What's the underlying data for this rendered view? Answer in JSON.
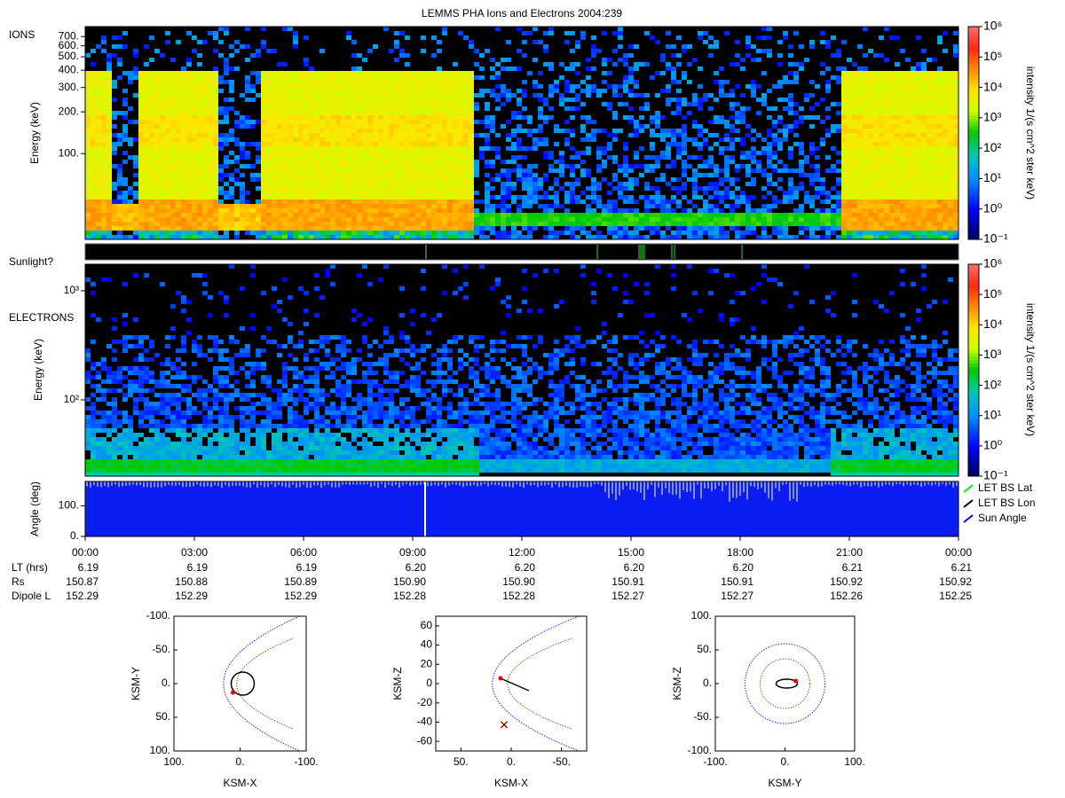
{
  "title": "LEMMS PHA Ions and Electrons  2004:239",
  "ions": {
    "label": "IONS",
    "ylabel": "Energy (keV)",
    "yscale": "log",
    "ylim": [
      24,
      826
    ],
    "yticks": [
      {
        "value": 100,
        "label": "100."
      },
      {
        "value": 200,
        "label": "200."
      },
      {
        "value": 300,
        "label": "300."
      },
      {
        "value": 400,
        "label": "400."
      },
      {
        "value": 500,
        "label": "500."
      },
      {
        "value": 600,
        "label": "600."
      },
      {
        "value": 700,
        "label": "700."
      }
    ]
  },
  "sunlight": {
    "label": "Sunlight?"
  },
  "electrons": {
    "label": "ELECTRONS",
    "ylabel": "Energy (keV)",
    "yscale": "log",
    "ylim": [
      20,
      1750
    ],
    "yticks": [
      {
        "value": 100,
        "label": "10²"
      },
      {
        "value": 1000,
        "label": "10³"
      }
    ]
  },
  "colorbar": {
    "label": "intensity 1/(s cm^2 ster keV)",
    "scale": "log",
    "lim": [
      0.1,
      1000000
    ],
    "ticks": [
      {
        "value": 0.1,
        "label": "10⁻¹"
      },
      {
        "value": 1,
        "label": "10⁰"
      },
      {
        "value": 10,
        "label": "10¹"
      },
      {
        "value": 100,
        "label": "10²"
      },
      {
        "value": 1000,
        "label": "10³"
      },
      {
        "value": 10000,
        "label": "10⁴"
      },
      {
        "value": 100000,
        "label": "10⁵"
      },
      {
        "value": 1000000,
        "label": "10⁶"
      }
    ]
  },
  "angle": {
    "ylabel": "Angle (deg)",
    "ylim": [
      0,
      180
    ],
    "yticks": [
      {
        "value": 0,
        "label": "0."
      },
      {
        "value": 100,
        "label": "100."
      }
    ],
    "legend": [
      {
        "name": "LET BS Lat",
        "color": "#00ee00"
      },
      {
        "name": "LET BS Lon",
        "color": "#000000"
      },
      {
        "name": "Sun Angle",
        "color": "#0000ff"
      }
    ]
  },
  "time_axis": {
    "ticks": [
      "00:00",
      "03:00",
      "06:00",
      "09:00",
      "12:00",
      "15:00",
      "18:00",
      "21:00",
      "00:00"
    ]
  },
  "ephemeris": [
    {
      "label": "LT (hrs)",
      "values": [
        "6.19",
        "6.19",
        "6.19",
        "6.20",
        "6.20",
        "6.20",
        "6.20",
        "6.21",
        "6.21"
      ]
    },
    {
      "label": "Rs",
      "values": [
        "150.87",
        "150.88",
        "150.89",
        "150.90",
        "150.90",
        "150.91",
        "150.91",
        "150.92",
        "150.92"
      ]
    },
    {
      "label": "Dipole L",
      "values": [
        "152.29",
        "152.29",
        "152.29",
        "152.28",
        "152.28",
        "152.27",
        "152.27",
        "152.26",
        "152.25"
      ]
    }
  ],
  "orbits": [
    {
      "xlabel": "KSM-X",
      "ylabel": "KSM-Y",
      "xlim": [
        100,
        -100
      ],
      "ylim": [
        100,
        -100
      ],
      "xticks": [
        {
          "value": 100,
          "label": "100."
        },
        {
          "value": 0,
          "label": "0."
        },
        {
          "value": -100,
          "label": "-100."
        }
      ],
      "yticks": [
        {
          "value": -100,
          "label": "-100."
        },
        {
          "value": -50,
          "label": "-50."
        },
        {
          "value": 0,
          "label": "0."
        },
        {
          "value": 50,
          "label": "50."
        },
        {
          "value": 100,
          "label": "100."
        }
      ]
    },
    {
      "xlabel": "KSM-X",
      "ylabel": "KSM-Z",
      "xlim": [
        75,
        -75
      ],
      "ylim": [
        -70,
        70
      ],
      "xticks": [
        {
          "value": 50,
          "label": "50."
        },
        {
          "value": 0,
          "label": "0."
        },
        {
          "value": -50,
          "label": "-50."
        }
      ],
      "yticks": [
        60,
        40,
        20,
        0,
        -20,
        -40,
        -60
      ]
    },
    {
      "xlabel": "KSM-Y",
      "ylabel": "KSM-Z",
      "xlim": [
        -100,
        100
      ],
      "ylim": [
        -100,
        100
      ],
      "xticks": [
        {
          "value": -100,
          "label": "-100."
        },
        {
          "value": 0,
          "label": "0."
        },
        {
          "value": 100,
          "label": "100."
        }
      ],
      "yticks": [
        {
          "value": 100,
          "label": "100."
        },
        {
          "value": 50,
          "label": "50."
        },
        {
          "value": 0,
          "label": "0."
        },
        {
          "value": -50,
          "label": "-50."
        },
        {
          "value": -100,
          "label": "-100."
        }
      ]
    }
  ]
}
